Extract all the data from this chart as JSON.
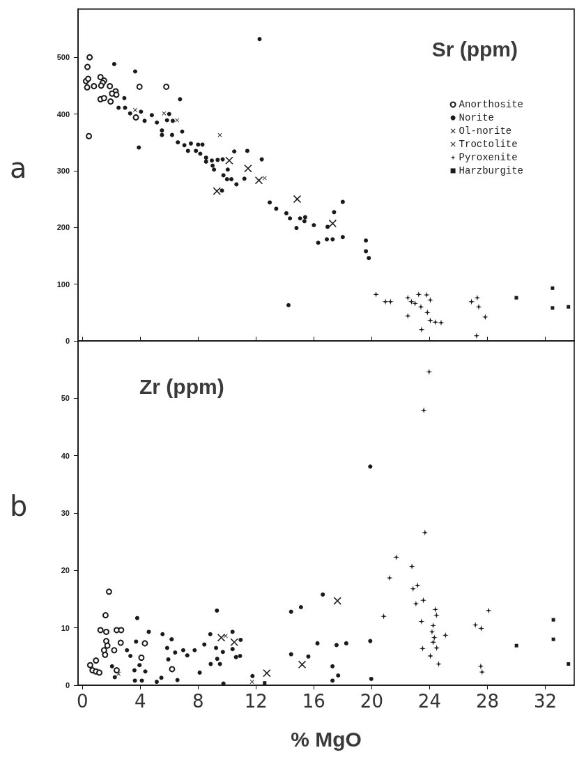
{
  "chart_data": [
    {
      "type": "scatter",
      "title": "Sr (ppm)",
      "annotations": [
        "a"
      ],
      "xlim": [
        -0.3,
        34
      ],
      "xticks": [
        0,
        4,
        8,
        12,
        16,
        20,
        24,
        28,
        32
      ],
      "ylim": [
        0,
        585
      ],
      "yticks": [
        0,
        100,
        200,
        300,
        400,
        500
      ],
      "tick_labels": "y",
      "grid": false,
      "legend": "top right",
      "series": [
        {
          "name": "Anorthosite",
          "color": "#1a1a1a",
          "marker": "circle",
          "x": [
            0.5,
            0.35,
            0.45,
            1.25,
            1.5,
            0.8,
            1.9,
            2.3,
            2.05,
            2.35,
            1.25,
            1.5,
            1.95,
            3.95,
            5.8,
            3.7,
            0.33,
            0.25,
            0.4,
            1.4,
            1.3
          ],
          "values": [
            500,
            483,
            361,
            465,
            459,
            449,
            449,
            440,
            436,
            434,
            426,
            428,
            422,
            448,
            448,
            394,
            447,
            458,
            462,
            455,
            450
          ]
        },
        {
          "name": "Norite",
          "color": "#1a1a1a",
          "marker": "circle",
          "x": [
            2.2,
            3.65,
            12.25,
            6.75,
            2.9,
            2.5,
            2.95,
            3.3,
            4.05,
            4.8,
            4.3,
            5.15,
            6.0,
            5.85,
            6.25,
            5.5,
            5.5,
            6.2,
            6.9,
            3.9,
            6.6,
            7.05,
            7.5,
            7.3,
            7.85,
            8.0,
            8.3,
            8.15,
            8.55,
            8.55,
            8.95,
            9.35,
            9.7,
            9.0,
            9.1,
            10.05,
            9.75,
            10.0,
            10.3,
            10.65,
            11.2,
            10.5,
            11.4,
            12.4,
            9.65,
            12.95,
            13.4,
            14.1,
            14.35,
            14.8,
            15.05,
            15.4,
            15.35,
            16.0,
            16.3,
            14.25,
            16.95,
            17.4,
            18.0,
            16.9,
            17.3,
            18.0,
            19.6,
            19.6,
            19.8
          ],
          "values": [
            488,
            475,
            532,
            426,
            428,
            411,
            411,
            401,
            404,
            398,
            388,
            385,
            400,
            389,
            388,
            371,
            363,
            363,
            369,
            341,
            350,
            345,
            348,
            335,
            335,
            346,
            346,
            330,
            323,
            316,
            318,
            319,
            320,
            309,
            302,
            302,
            292,
            285,
            285,
            276,
            286,
            334,
            335,
            320,
            265,
            244,
            233,
            225,
            216,
            199,
            216,
            218,
            211,
            204,
            173,
            63,
            201,
            227,
            245,
            179,
            179,
            183,
            177,
            158,
            146
          ]
        },
        {
          "name": "Ol-norite",
          "color": "#1a1a1a",
          "marker": "cross",
          "x": [
            10.15,
            11.45,
            9.3,
            14.85,
            17.3,
            12.2
          ],
          "values": [
            318,
            304,
            264,
            250,
            207,
            283
          ]
        },
        {
          "name": "Troctolite",
          "color": "#1a1a1a",
          "marker": "cross",
          "x": [
            3.65,
            5.65,
            6.55,
            9.5,
            12.6
          ],
          "values": [
            407,
            401,
            389,
            363,
            287
          ]
        },
        {
          "name": "Pyroxenite",
          "color": "#1a1a1a",
          "marker": "star",
          "x": [
            20.3,
            20.95,
            21.3,
            22.5,
            22.75,
            23.25,
            23.0,
            23.4,
            23.85,
            24.05,
            23.8,
            22.5,
            24.05,
            24.4,
            24.8,
            23.45,
            26.9,
            27.3,
            27.4,
            27.85,
            27.25
          ],
          "values": [
            82,
            69,
            69,
            76,
            69,
            82,
            66,
            60,
            50,
            72,
            81,
            44,
            36,
            33,
            32,
            20,
            69,
            76,
            60,
            42,
            9
          ]
        },
        {
          "name": "Harzburgite",
          "color": "#1a1a1a",
          "marker": "square",
          "x": [
            30.0,
            32.5,
            32.5,
            33.6
          ],
          "values": [
            76,
            93,
            58,
            60
          ]
        }
      ]
    },
    {
      "type": "scatter",
      "title": "Zr (ppm)",
      "xlabel": "% MgO",
      "annotations": [
        "b"
      ],
      "xlim": [
        -0.3,
        34
      ],
      "xticks": [
        0,
        4,
        8,
        12,
        16,
        20,
        24,
        28,
        32
      ],
      "ylim": [
        0,
        60
      ],
      "yticks": [
        0,
        10,
        20,
        30,
        40,
        50
      ],
      "grid": false,
      "series": [
        {
          "color": "#1a1a1a",
          "marker": "circle",
          "x": [
            1.84,
            1.6,
            1.25,
            1.65,
            2.37,
            2.68,
            1.65,
            2.2,
            1.5,
            1.57,
            1.73,
            2.65,
            4.32,
            4.08,
            0.94,
            0.54,
            0.7,
            0.94,
            1.17,
            2.37,
            6.2
          ],
          "values": [
            16.3,
            12.2,
            9.6,
            9.3,
            9.6,
            9.6,
            7.7,
            6.1,
            6.1,
            5.3,
            6.9,
            7.4,
            7.3,
            4.8,
            4.3,
            3.5,
            2.6,
            2.4,
            2.2,
            2.6,
            2.8
          ]
        },
        {
          "color": "#1a1a1a",
          "marker": "circle",
          "x": [
            3.79,
            4.59,
            5.54,
            6.17,
            3.71,
            3.08,
            3.32,
            5.86,
            6.41,
            6.97,
            7.25,
            7.76,
            8.43,
            8.84,
            9.3,
            9.24,
            9.71,
            9.32,
            9.51,
            8.87,
            10.38,
            10.38,
            10.94,
            10.9,
            10.62,
            2.05,
            2.24,
            3.6,
            3.95,
            4.35,
            3.63,
            4.11,
            5.14,
            5.46,
            6.57,
            8.11,
            9.75,
            11.76,
            14.43,
            15.11,
            14.43,
            15.62,
            16.25,
            5.94,
            16.62,
            17.57,
            18.24,
            19.9,
            17.29,
            17.68,
            17.29,
            19.97,
            19.9
          ],
          "values": [
            11.7,
            9.3,
            8.9,
            8.0,
            7.6,
            6.1,
            5.1,
            6.5,
            5.7,
            6.1,
            5.2,
            6.1,
            7.1,
            8.9,
            13.0,
            6.5,
            5.8,
            4.6,
            3.7,
            3.7,
            9.3,
            6.3,
            7.9,
            5.1,
            4.9,
            3.3,
            1.4,
            2.6,
            3.5,
            2.4,
            0.8,
            0.8,
            0.6,
            1.3,
            0.9,
            2.2,
            0.3,
            1.6,
            12.8,
            13.6,
            5.4,
            5.0,
            7.3,
            4.5,
            15.8,
            7.0,
            7.3,
            7.7,
            3.3,
            1.7,
            0.8,
            1.1,
            38.1
          ]
        },
        {
          "color": "#1a1a1a",
          "marker": "cross",
          "x": [
            17.63,
            15.19,
            12.75,
            9.6,
            10.5
          ],
          "values": [
            14.7,
            3.6,
            2.1,
            8.3,
            7.5
          ]
        },
        {
          "color": "#1a1a1a",
          "marker": "cross",
          "x": [
            11.73,
            2.5,
            9.9
          ],
          "values": [
            0.6,
            2.0,
            8.6
          ]
        },
        {
          "color": "#1a1a1a",
          "marker": "star",
          "x": [
            23.97,
            23.6,
            23.68,
            21.7,
            22.78,
            21.24,
            22.86,
            23.17,
            23.57,
            23.06,
            24.4,
            24.48,
            20.83,
            23.44,
            24.25,
            24.17,
            24.33,
            24.25,
            25.1,
            23.52,
            24.49,
            24.06,
            24.63,
            27.17,
            27.57,
            28.08,
            27.54,
            27.63
          ],
          "values": [
            54.6,
            47.9,
            26.6,
            22.3,
            20.7,
            18.7,
            16.8,
            17.4,
            14.8,
            14.2,
            13.2,
            12.2,
            12.0,
            11.1,
            10.4,
            9.3,
            8.3,
            7.5,
            8.7,
            6.4,
            6.5,
            5.1,
            3.7,
            10.5,
            9.9,
            13.0,
            3.3,
            2.3
          ]
        },
        {
          "color": "#1a1a1a",
          "marker": "square",
          "x": [
            12.6,
            30.01,
            32.56,
            32.56,
            33.6
          ],
          "values": [
            0.4,
            6.9,
            11.4,
            8.0,
            3.7
          ]
        }
      ]
    }
  ]
}
